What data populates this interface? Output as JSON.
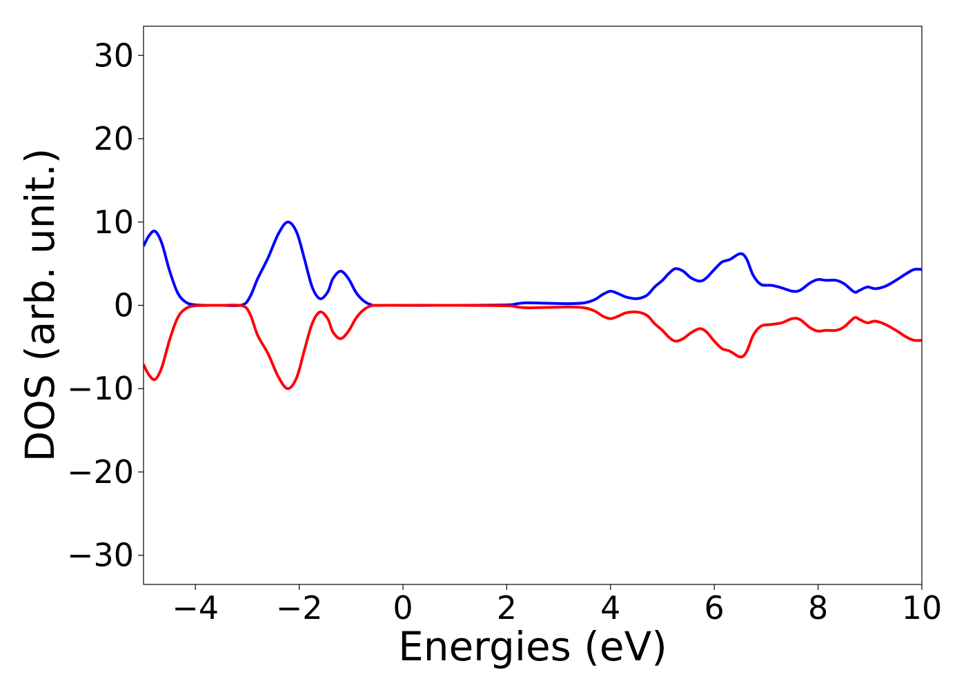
{
  "chart_data": {
    "type": "line",
    "title": "",
    "xlabel": "Energies (eV)",
    "ylabel": "DOS (arb. unit.)",
    "xlim": [
      -5,
      10
    ],
    "ylim": [
      -33.5,
      33.5
    ],
    "grid": false,
    "legend": "none",
    "x_ticks": [
      -4,
      -2,
      0,
      2,
      4,
      6,
      8,
      10
    ],
    "x_tick_labels": [
      "−4",
      "−2",
      "0",
      "2",
      "4",
      "6",
      "8",
      "10"
    ],
    "y_ticks": [
      30,
      20,
      10,
      0,
      -10,
      -20,
      -30
    ],
    "y_tick_labels": [
      "30",
      "20",
      "10",
      "0",
      "−10",
      "−20",
      "−30"
    ],
    "series": [
      {
        "color": "#0000ff",
        "points": [
          [
            -5.0,
            7.1
          ],
          [
            -4.9,
            8.3
          ],
          [
            -4.78,
            8.9
          ],
          [
            -4.65,
            7.5
          ],
          [
            -4.5,
            4.2
          ],
          [
            -4.35,
            1.6
          ],
          [
            -4.2,
            0.45
          ],
          [
            -4.0,
            0.05
          ],
          [
            -3.5,
            0.0
          ],
          [
            -3.1,
            0.05
          ],
          [
            -2.95,
            1.0
          ],
          [
            -2.8,
            3.2
          ],
          [
            -2.6,
            5.7
          ],
          [
            -2.4,
            8.6
          ],
          [
            -2.22,
            10.0
          ],
          [
            -2.05,
            8.8
          ],
          [
            -1.9,
            5.6
          ],
          [
            -1.75,
            2.2
          ],
          [
            -1.6,
            0.8
          ],
          [
            -1.45,
            1.6
          ],
          [
            -1.35,
            3.2
          ],
          [
            -1.2,
            4.1
          ],
          [
            -1.05,
            3.2
          ],
          [
            -0.9,
            1.5
          ],
          [
            -0.75,
            0.5
          ],
          [
            -0.6,
            0.05
          ],
          [
            -0.4,
            0.0
          ],
          [
            1.0,
            0.0
          ],
          [
            2.0,
            0.05
          ],
          [
            2.2,
            0.2
          ],
          [
            2.4,
            0.3
          ],
          [
            2.8,
            0.25
          ],
          [
            3.2,
            0.2
          ],
          [
            3.5,
            0.3
          ],
          [
            3.7,
            0.7
          ],
          [
            3.85,
            1.3
          ],
          [
            4.0,
            1.7
          ],
          [
            4.15,
            1.4
          ],
          [
            4.3,
            1.0
          ],
          [
            4.5,
            0.8
          ],
          [
            4.7,
            1.2
          ],
          [
            4.85,
            2.2
          ],
          [
            5.0,
            3.0
          ],
          [
            5.12,
            3.8
          ],
          [
            5.25,
            4.4
          ],
          [
            5.4,
            4.1
          ],
          [
            5.55,
            3.3
          ],
          [
            5.72,
            2.9
          ],
          [
            5.85,
            3.3
          ],
          [
            6.0,
            4.3
          ],
          [
            6.15,
            5.2
          ],
          [
            6.3,
            5.5
          ],
          [
            6.5,
            6.2
          ],
          [
            6.62,
            5.6
          ],
          [
            6.75,
            3.6
          ],
          [
            6.9,
            2.5
          ],
          [
            7.1,
            2.4
          ],
          [
            7.3,
            2.1
          ],
          [
            7.5,
            1.7
          ],
          [
            7.65,
            1.8
          ],
          [
            7.85,
            2.7
          ],
          [
            8.0,
            3.1
          ],
          [
            8.15,
            3.0
          ],
          [
            8.35,
            3.0
          ],
          [
            8.5,
            2.6
          ],
          [
            8.7,
            1.6
          ],
          [
            8.8,
            1.8
          ],
          [
            8.95,
            2.2
          ],
          [
            9.1,
            2.0
          ],
          [
            9.3,
            2.3
          ],
          [
            9.5,
            3.0
          ],
          [
            9.7,
            3.8
          ],
          [
            9.85,
            4.3
          ],
          [
            10.0,
            4.3
          ]
        ]
      },
      {
        "color": "#ff0000",
        "points": [
          [
            -5.0,
            -7.1
          ],
          [
            -4.9,
            -8.3
          ],
          [
            -4.78,
            -8.9
          ],
          [
            -4.65,
            -7.5
          ],
          [
            -4.5,
            -4.2
          ],
          [
            -4.35,
            -1.6
          ],
          [
            -4.2,
            -0.45
          ],
          [
            -4.0,
            -0.05
          ],
          [
            -3.5,
            0.0
          ],
          [
            -3.1,
            -0.05
          ],
          [
            -2.95,
            -1.0
          ],
          [
            -2.8,
            -3.6
          ],
          [
            -2.6,
            -5.8
          ],
          [
            -2.4,
            -8.6
          ],
          [
            -2.22,
            -10.0
          ],
          [
            -2.05,
            -8.7
          ],
          [
            -1.9,
            -5.4
          ],
          [
            -1.75,
            -2.2
          ],
          [
            -1.6,
            -0.8
          ],
          [
            -1.45,
            -1.6
          ],
          [
            -1.35,
            -3.2
          ],
          [
            -1.2,
            -4.0
          ],
          [
            -1.05,
            -3.1
          ],
          [
            -0.9,
            -1.5
          ],
          [
            -0.75,
            -0.5
          ],
          [
            -0.6,
            -0.05
          ],
          [
            -0.4,
            0.0
          ],
          [
            1.0,
            0.0
          ],
          [
            2.0,
            -0.05
          ],
          [
            2.2,
            -0.2
          ],
          [
            2.4,
            -0.3
          ],
          [
            2.8,
            -0.25
          ],
          [
            3.2,
            -0.2
          ],
          [
            3.5,
            -0.3
          ],
          [
            3.7,
            -0.7
          ],
          [
            3.85,
            -1.3
          ],
          [
            4.0,
            -1.6
          ],
          [
            4.15,
            -1.3
          ],
          [
            4.3,
            -0.9
          ],
          [
            4.5,
            -0.8
          ],
          [
            4.7,
            -1.2
          ],
          [
            4.85,
            -2.2
          ],
          [
            5.0,
            -3.0
          ],
          [
            5.12,
            -3.8
          ],
          [
            5.25,
            -4.3
          ],
          [
            5.4,
            -4.0
          ],
          [
            5.55,
            -3.3
          ],
          [
            5.72,
            -2.8
          ],
          [
            5.85,
            -3.2
          ],
          [
            6.0,
            -4.3
          ],
          [
            6.15,
            -5.2
          ],
          [
            6.3,
            -5.5
          ],
          [
            6.5,
            -6.2
          ],
          [
            6.62,
            -5.6
          ],
          [
            6.75,
            -3.6
          ],
          [
            6.9,
            -2.5
          ],
          [
            7.1,
            -2.3
          ],
          [
            7.3,
            -2.1
          ],
          [
            7.5,
            -1.6
          ],
          [
            7.65,
            -1.7
          ],
          [
            7.85,
            -2.7
          ],
          [
            8.0,
            -3.1
          ],
          [
            8.15,
            -3.0
          ],
          [
            8.35,
            -3.0
          ],
          [
            8.5,
            -2.6
          ],
          [
            8.7,
            -1.5
          ],
          [
            8.8,
            -1.7
          ],
          [
            8.95,
            -2.1
          ],
          [
            9.1,
            -1.9
          ],
          [
            9.3,
            -2.3
          ],
          [
            9.5,
            -3.0
          ],
          [
            9.7,
            -3.8
          ],
          [
            9.85,
            -4.2
          ],
          [
            10.0,
            -4.2
          ]
        ]
      }
    ]
  }
}
